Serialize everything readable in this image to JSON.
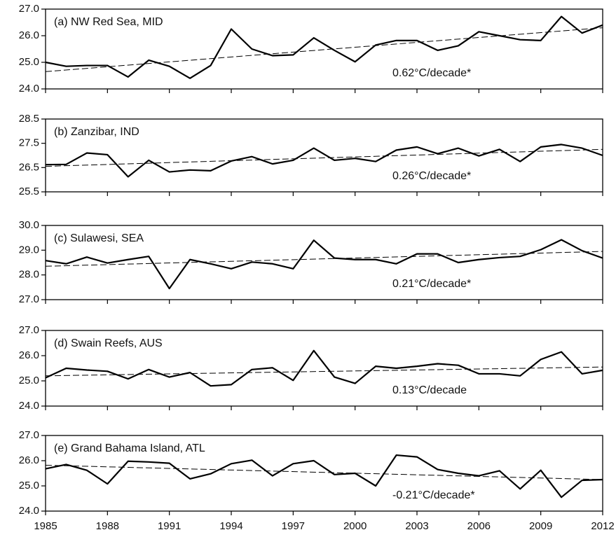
{
  "chart_data": [
    {
      "type": "line",
      "title": "(a) NW Red Sea, MID",
      "annotation": "0.62°C/decade*",
      "x": [
        1985,
        1986,
        1987,
        1988,
        1989,
        1990,
        1991,
        1992,
        1993,
        1994,
        1995,
        1996,
        1997,
        1998,
        1999,
        2000,
        2001,
        2002,
        2003,
        2004,
        2005,
        2006,
        2007,
        2008,
        2009,
        2010,
        2011,
        2012
      ],
      "values": [
        25.0,
        24.85,
        24.88,
        24.88,
        24.45,
        25.08,
        24.85,
        24.4,
        24.88,
        26.25,
        25.5,
        25.25,
        25.28,
        25.92,
        25.45,
        25.02,
        25.65,
        25.82,
        25.82,
        25.45,
        25.62,
        26.15,
        26.0,
        25.85,
        25.82,
        26.72,
        26.1,
        26.4
      ],
      "trend": {
        "x": [
          1985,
          2012
        ],
        "values": [
          24.65,
          26.3
        ]
      },
      "color": "#000000",
      "xlim": [
        1985,
        2012
      ],
      "ylim": [
        24,
        27
      ],
      "yticks": [
        {
          "value": 24,
          "label": "24.0"
        },
        {
          "value": 25,
          "label": "25.0"
        },
        {
          "value": 26,
          "label": "26.0"
        },
        {
          "value": 27,
          "label": "27.0"
        }
      ]
    },
    {
      "type": "line",
      "title": "(b) Zanzibar, IND",
      "annotation": "0.26°C/decade*",
      "x": [
        1985,
        1986,
        1987,
        1988,
        1989,
        1990,
        1991,
        1992,
        1993,
        1994,
        1995,
        1996,
        1997,
        1998,
        1999,
        2000,
        2001,
        2002,
        2003,
        2004,
        2005,
        2006,
        2007,
        2008,
        2009,
        2010,
        2011,
        2012
      ],
      "values": [
        26.62,
        26.63,
        27.1,
        27.03,
        26.12,
        26.8,
        26.32,
        26.4,
        26.37,
        26.77,
        26.95,
        26.65,
        26.8,
        27.3,
        26.8,
        26.88,
        26.75,
        27.22,
        27.35,
        27.07,
        27.3,
        26.98,
        27.25,
        26.75,
        27.35,
        27.45,
        27.3,
        27.0
      ],
      "trend": {
        "x": [
          1985,
          2012
        ],
        "values": [
          26.55,
          27.25
        ]
      },
      "color": "#000000",
      "xlim": [
        1985,
        2012
      ],
      "ylim": [
        25.5,
        28.5
      ],
      "yticks": [
        25.5,
        26.5,
        27.5,
        28.5
      ]
    },
    {
      "type": "line",
      "title": "(c) Sulawesi, SEA",
      "annotation": "0.21°C/decade*",
      "x": [
        1985,
        1986,
        1987,
        1988,
        1989,
        1990,
        1991,
        1992,
        1993,
        1994,
        1995,
        1996,
        1997,
        1998,
        1999,
        2000,
        2001,
        2002,
        2003,
        2004,
        2005,
        2006,
        2007,
        2008,
        2009,
        2010,
        2011,
        2012
      ],
      "values": [
        28.58,
        28.45,
        28.72,
        28.48,
        28.62,
        28.75,
        27.45,
        28.62,
        28.45,
        28.25,
        28.52,
        28.45,
        28.25,
        29.4,
        28.68,
        28.62,
        28.62,
        28.45,
        28.85,
        28.85,
        28.5,
        28.62,
        28.7,
        28.75,
        29.02,
        29.42,
        28.98,
        28.68
      ],
      "trend": {
        "x": [
          1985,
          2012
        ],
        "values": [
          28.35,
          28.95
        ]
      },
      "color": "#000000",
      "xlim": [
        1985,
        2012
      ],
      "ylim": [
        27,
        30
      ],
      "yticks": [
        {
          "value": 27,
          "label": "27.0"
        },
        {
          "value": 28,
          "label": "28.0"
        },
        {
          "value": 29,
          "label": "29.0"
        },
        {
          "value": 30,
          "label": "30.0"
        }
      ]
    },
    {
      "type": "line",
      "title": "(d) Swain Reefs, AUS",
      "annotation": "0.13°C/decade",
      "x": [
        1985,
        1986,
        1987,
        1988,
        1989,
        1990,
        1991,
        1992,
        1993,
        1994,
        1995,
        1996,
        1997,
        1998,
        1999,
        2000,
        2001,
        2002,
        2003,
        2004,
        2005,
        2006,
        2007,
        2008,
        2009,
        2010,
        2011,
        2012
      ],
      "values": [
        25.12,
        25.5,
        25.43,
        25.38,
        25.08,
        25.45,
        25.15,
        25.33,
        24.8,
        24.85,
        25.45,
        25.52,
        25.02,
        26.2,
        25.15,
        24.9,
        25.58,
        25.5,
        25.58,
        25.68,
        25.62,
        25.28,
        25.28,
        25.2,
        25.85,
        26.15,
        25.28,
        25.42
      ],
      "trend": {
        "x": [
          1985,
          2012
        ],
        "values": [
          25.2,
          25.55
        ]
      },
      "color": "#000000",
      "xlim": [
        1985,
        2012
      ],
      "ylim": [
        24,
        27
      ],
      "yticks": [
        {
          "value": 24,
          "label": "24.0"
        },
        {
          "value": 25,
          "label": "25.0"
        },
        {
          "value": 26,
          "label": "26.0"
        },
        {
          "value": 27,
          "label": "27.0"
        }
      ]
    },
    {
      "type": "line",
      "title": "(e) Grand Bahama Island, ATL",
      "annotation": "-0.21°C/decade*",
      "x": [
        1985,
        1986,
        1987,
        1988,
        1989,
        1990,
        1991,
        1992,
        1993,
        1994,
        1995,
        1996,
        1997,
        1998,
        1999,
        2000,
        2001,
        2002,
        2003,
        2004,
        2005,
        2006,
        2007,
        2008,
        2009,
        2010,
        2011,
        2012
      ],
      "values": [
        25.68,
        25.85,
        25.62,
        25.08,
        25.98,
        25.95,
        25.9,
        25.28,
        25.48,
        25.88,
        26.02,
        25.4,
        25.88,
        26.0,
        25.45,
        25.5,
        25.0,
        26.22,
        26.15,
        25.65,
        25.5,
        25.4,
        25.6,
        24.88,
        25.62,
        24.55,
        25.22,
        25.25
      ],
      "trend": {
        "x": [
          1985,
          2012
        ],
        "values": [
          25.82,
          25.25
        ]
      },
      "color": "#000000",
      "xlim": [
        1985,
        2012
      ],
      "ylim": [
        24,
        27
      ],
      "yticks": [
        {
          "value": 24,
          "label": "24.0"
        },
        {
          "value": 25,
          "label": "25.0"
        },
        {
          "value": 26,
          "label": "26.0"
        },
        {
          "value": 27,
          "label": "27.0"
        }
      ],
      "xticks": [
        1985,
        1988,
        1991,
        1994,
        1997,
        2000,
        2003,
        2006,
        2009,
        2012
      ]
    }
  ]
}
